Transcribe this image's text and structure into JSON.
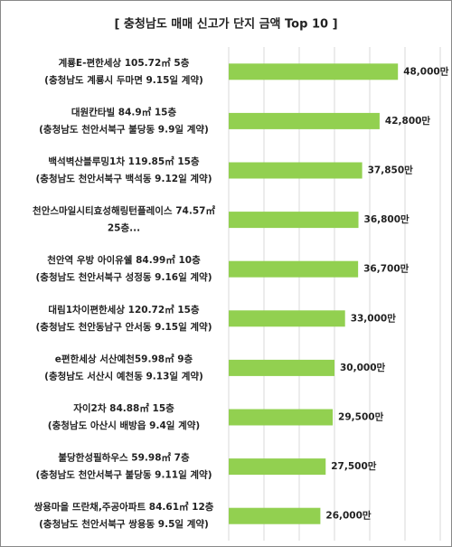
{
  "chart_data": {
    "type": "barh",
    "title": "[ 충청남도 매매 신고가 단지 금액 Top 10 ]",
    "categories": [
      [
        "계룡E-편한세상 105.72㎡ 5층",
        "(충청남도 계룡시 두마면 9.15일 계약)"
      ],
      [
        "대원칸타빌 84.9㎡ 15층",
        "(충청남도 천안서북구 불당동 9.9일 계약)"
      ],
      [
        "백석벽산블루밍1차 119.85㎡ 15층",
        "(충청남도 천안서북구 백석동 9.12일 계약)"
      ],
      [
        "천안스마일시티효성해링턴플레이스 74.57㎡",
        "25층..."
      ],
      [
        "천안역 우방 아이유쉘 84.99㎡ 10층",
        "(충청남도 천안서북구 성정동 9.16일 계약)"
      ],
      [
        "대림1차이편한세상 120.72㎡ 15층",
        "(충청남도 천안동남구 안서동 9.15일 계약)"
      ],
      [
        "e편한세상 서산예천59.98㎡ 9층",
        "(충청남도 서산시 예천동 9.13일 계약)"
      ],
      [
        "자이2차 84.88㎡ 15층",
        "(충청남도 아산시 배방읍 9.4일 계약)"
      ],
      [
        "불당한성필하우스 59.98㎡ 7층",
        "(충청남도 천안서북구 불당동 9.11일 계약)"
      ],
      [
        "쌍용마을 뜨란채,주공아파트 84.61㎡ 12층",
        "(충청남도 천안서북구 쌍용동 9.5일 계약)"
      ]
    ],
    "values": [
      48000,
      42800,
      37850,
      36800,
      36700,
      33000,
      30000,
      29500,
      27500,
      26000
    ],
    "value_labels": [
      "48,000만",
      "42,800만",
      "37,850만",
      "36,800만",
      "36,700만",
      "33,000만",
      "30,000만",
      "29,500만",
      "27,500만",
      "26,000만"
    ],
    "color": "#92d050",
    "xlim": [
      0,
      60000
    ],
    "xticks": [
      0,
      10000,
      20000,
      30000,
      40000,
      50000,
      60000
    ],
    "grid": true
  }
}
